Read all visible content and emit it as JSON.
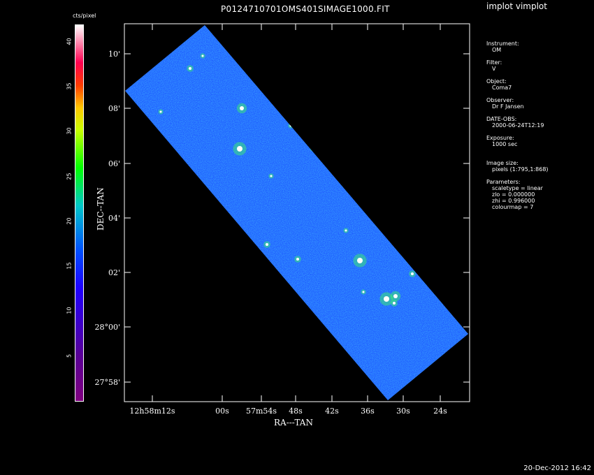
{
  "window": {
    "title": "P0124710701OMS401SIMAGE1000.FIT",
    "tool": "implot vimplot",
    "footer_timestamp": "20-Dec-2012 16:42"
  },
  "colorbar": {
    "unit": "cts/pixel",
    "ticks": [
      "5",
      "10",
      "15",
      "20",
      "25",
      "30",
      "35",
      "40"
    ]
  },
  "info": [
    {
      "label": "Instrument:",
      "value": "OM"
    },
    {
      "label": "Filter:",
      "value": "V"
    },
    {
      "label": "Object:",
      "value": "Coma7"
    },
    {
      "label": "Observer:",
      "value": "Dr F Jansen"
    },
    {
      "label": "DATE-OBS:",
      "value": "2000-06-24T12:19"
    },
    {
      "label": "Exposure:",
      "value": "1000 sec"
    },
    {
      "label": "Image size:",
      "value": "pixels (1:795,1:868)"
    },
    {
      "label": "Parameters:",
      "value": "scaletype = linear"
    },
    {
      "label": "",
      "value": "zlo = 0.000000"
    },
    {
      "label": "",
      "value": "zhi = 0.996000"
    },
    {
      "label": "",
      "value": "colourmap =   7"
    }
  ],
  "colors": {
    "background": "#000000",
    "image_fill": "#1e5bff",
    "axis": "#ffffff"
  },
  "chart_data": {
    "type": "heatmap",
    "xlabel": "RA---TAN",
    "ylabel": "DEC--TAN",
    "x_ticks": [
      "12h58m12s",
      "00s",
      "57m54s",
      "48s",
      "42s",
      "36s",
      "30s",
      "24s"
    ],
    "y_ticks": [
      "27°58'",
      "28°00'",
      "02'",
      "04'",
      "06'",
      "08'",
      "08'",
      "10'"
    ],
    "colormap": "rainbow",
    "value_range": [
      0,
      42
    ]
  }
}
